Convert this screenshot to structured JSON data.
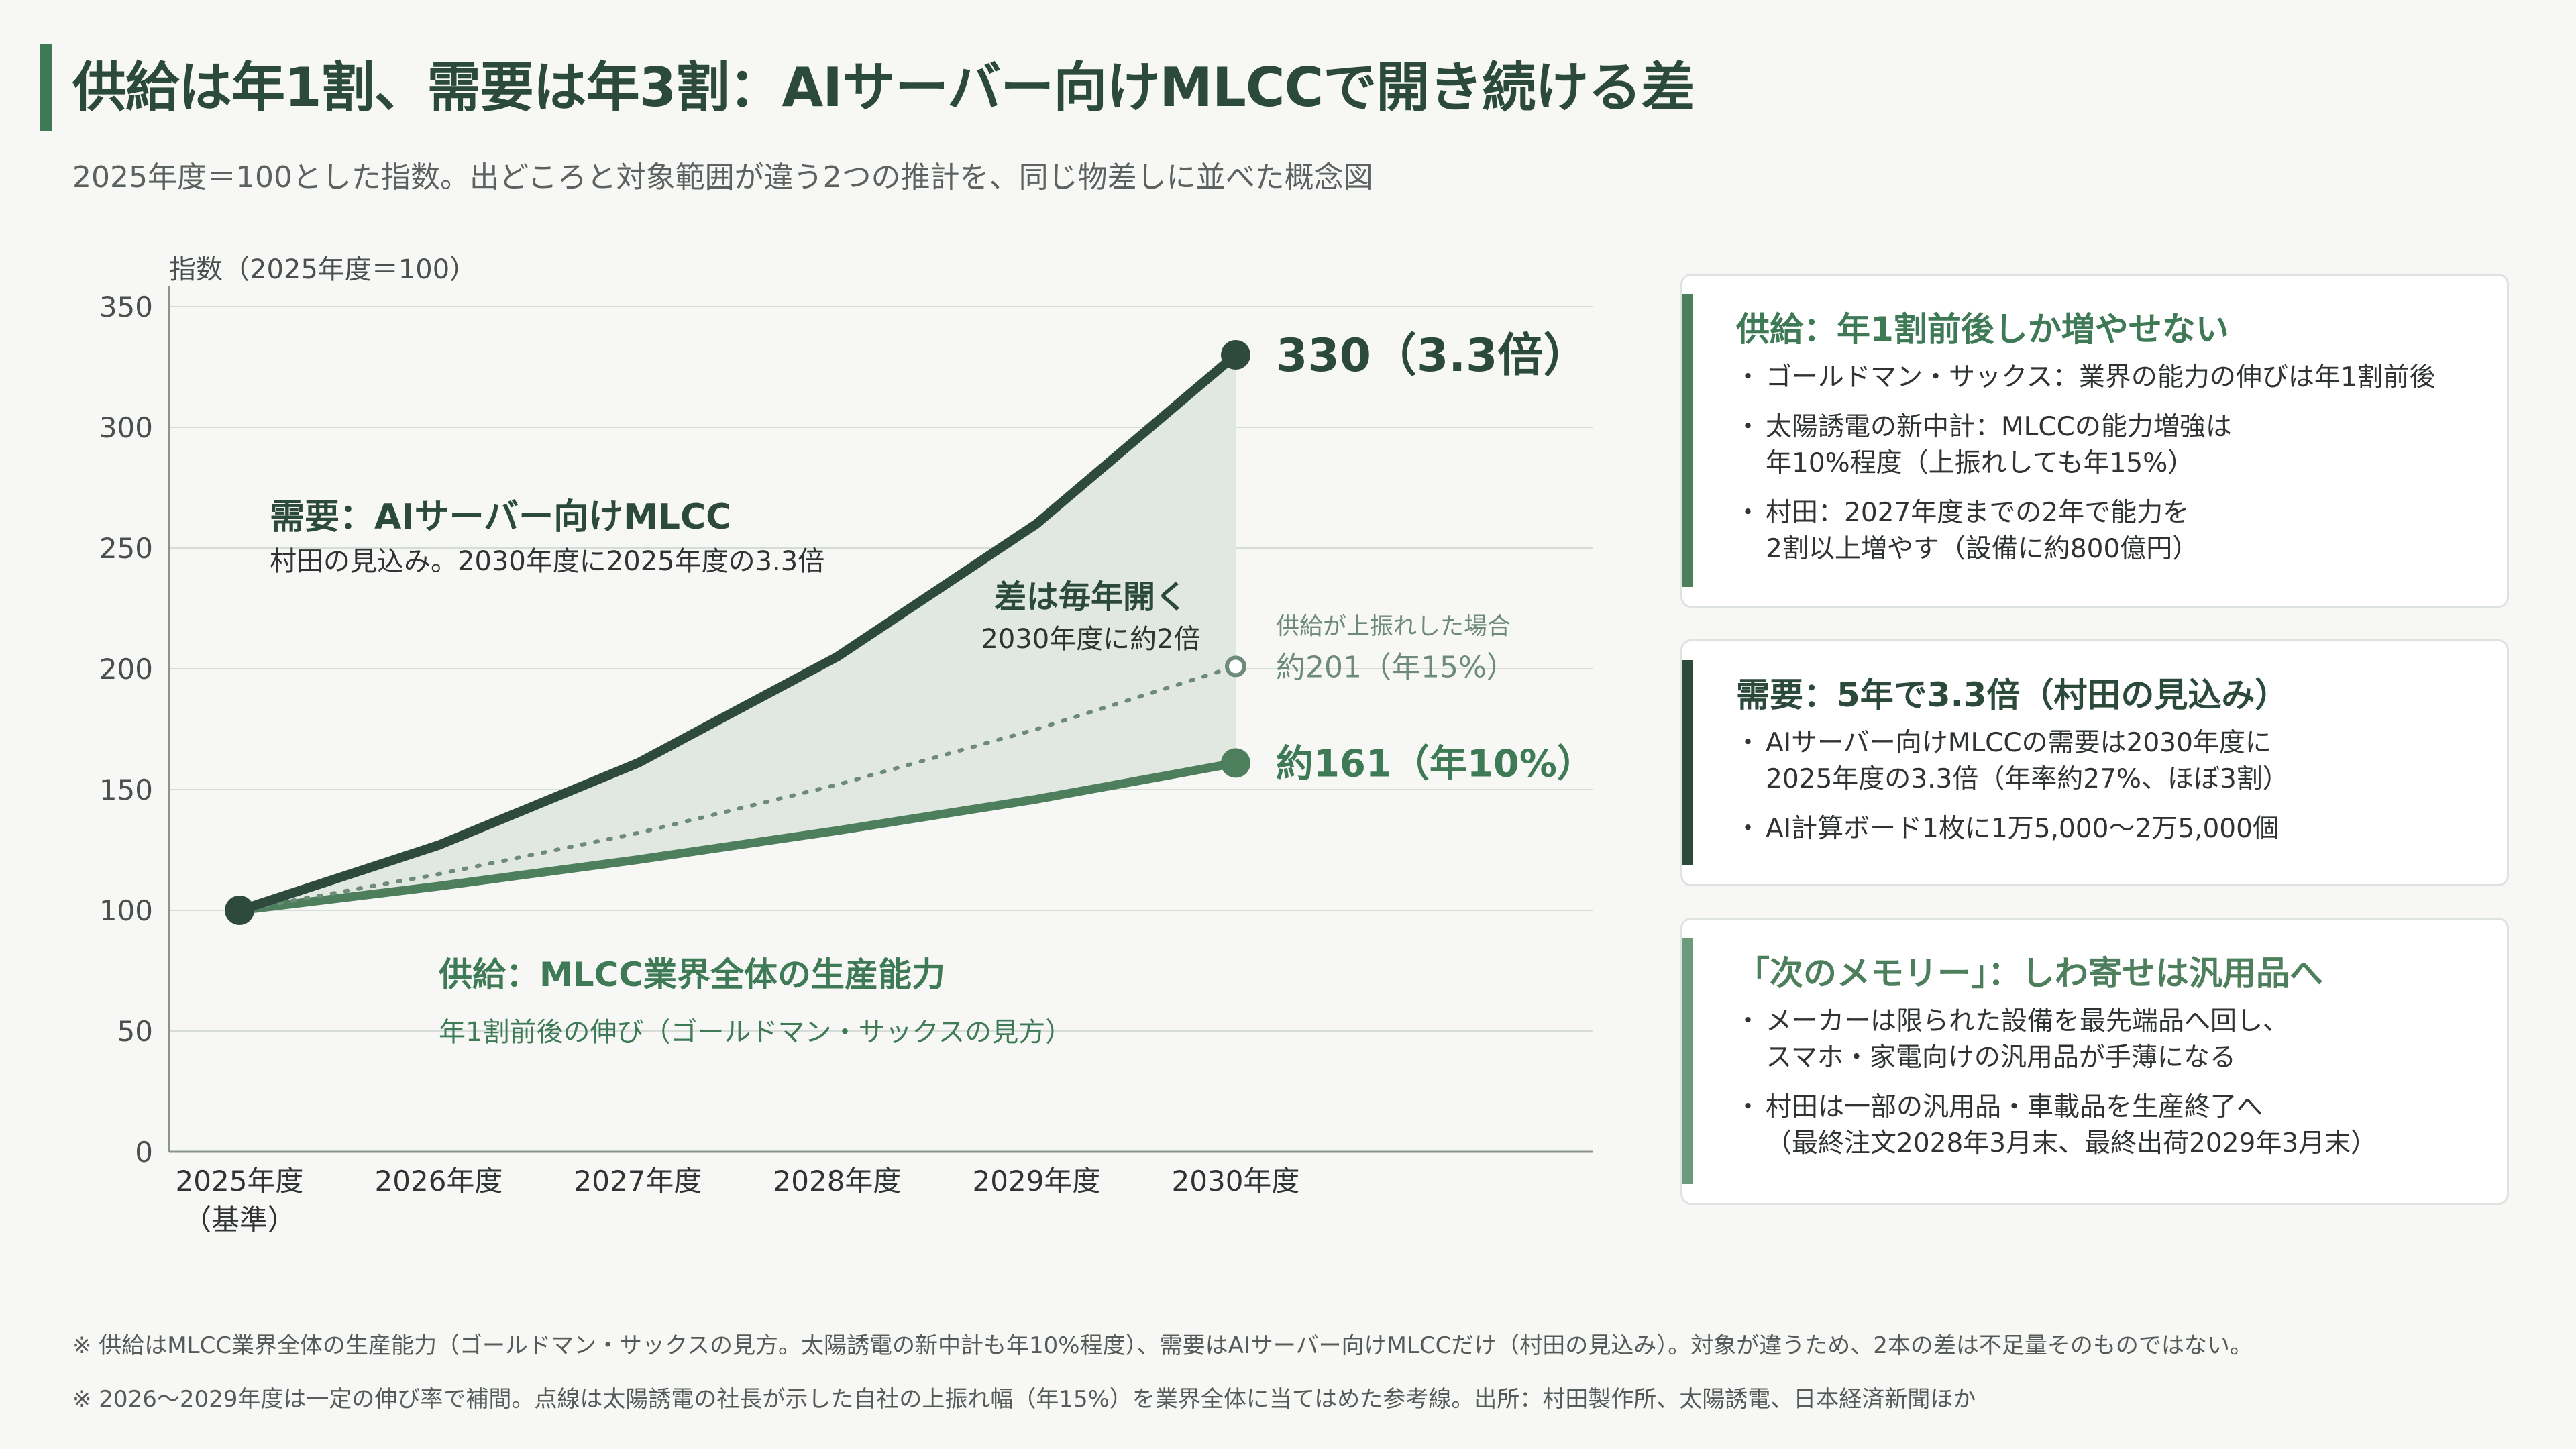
{
  "title": "供給は年1割、需要は年3割：AIサーバー向けMLCCで開き続ける差",
  "subtitle": "2025年度＝100とした指数。出どころと対象範囲が違う2つの推計を、同じ物差しに並べた概念図",
  "chart_data": {
    "type": "line",
    "ylabel": "指数（2025年度＝100）",
    "ylim": [
      0,
      350
    ],
    "yticks": [
      0,
      50,
      100,
      150,
      200,
      250,
      300,
      350
    ],
    "categories": [
      "2025年度",
      "2026年度",
      "2027年度",
      "2028年度",
      "2029年度",
      "2030年度"
    ],
    "category_sublabels": [
      "（基準）",
      "",
      "",
      "",
      "",
      ""
    ],
    "grid": true,
    "series": [
      {
        "key": "demand",
        "color": "#2d4a3c",
        "style": "solid",
        "values": [
          100,
          127,
          161,
          205,
          260,
          330
        ]
      },
      {
        "key": "supply_upside",
        "color": "#6e8a78",
        "style": "dotted",
        "values": [
          100,
          115,
          132,
          152,
          175,
          201
        ]
      },
      {
        "key": "supply",
        "color": "#4d7f5d",
        "style": "solid",
        "values": [
          100,
          110,
          121,
          133,
          146,
          161
        ]
      }
    ],
    "gap_fill_color": "#dfe7e0",
    "end_labels": {
      "demand": "330（3.3倍）",
      "supply_upside_caption": "供給が上振れした場合",
      "supply_upside": "約201（年15%）",
      "supply": "約161（年10%）"
    },
    "annotations": {
      "demand_title": "需要：AIサーバー向けMLCC",
      "demand_desc": "村田の見込み。2030年度に2025年度の3.3倍",
      "gap_title": "差は毎年開く",
      "gap_desc": "2030年度に約2倍",
      "supply_title": "供給：MLCC業界全体の生産能力",
      "supply_desc": "年1割前後の伸び（ゴールドマン・サックスの見方）"
    }
  },
  "cards": [
    {
      "title": "供給：年1割前後しか増やせない",
      "accent": "#4d7f5d",
      "title_color": "#3f7a56",
      "bullets": [
        [
          "ゴールドマン・サックス：業界の能力の伸びは年1割前後"
        ],
        [
          "太陽誘電の新中計：MLCCの能力増強は",
          "年10%程度（上振れしても年15%）"
        ],
        [
          "村田：2027年度までの2年で能力を",
          "2割以上増やす（設備に約800億円）"
        ]
      ]
    },
    {
      "title": "需要：5年で3.3倍（村田の見込み）",
      "accent": "#2d4a3c",
      "title_color": "#2c4a3b",
      "bullets": [
        [
          "AIサーバー向けMLCCの需要は2030年度に",
          "2025年度の3.3倍（年率約27%、ほぼ3割）"
        ],
        [
          "AI計算ボード1枚に1万5,000〜2万5,000個"
        ]
      ]
    },
    {
      "title": "「次のメモリー」：しわ寄せは汎用品へ",
      "accent": "#6e9a7c",
      "title_color": "#4d7f5d",
      "bullets": [
        [
          "メーカーは限られた設備を最先端品へ回し、",
          "スマホ・家電向けの汎用品が手薄になる"
        ],
        [
          "村田は一部の汎用品・車載品を生産終了へ",
          "（最終注文2028年3月末、最終出荷2029年3月末）"
        ]
      ]
    }
  ],
  "notes": [
    "※ 供給はMLCC業界全体の生産能力（ゴールドマン・サックスの見方。太陽誘電の新中計も年10%程度）、需要はAIサーバー向けMLCCだけ（村田の見込み）。対象が違うため、2本の差は不足量そのものではない。",
    "※ 2026〜2029年度は一定の伸び率で補間。点線は太陽誘電の社長が示した自社の上振れ幅（年15%）を業界全体に当てはめた参考線。出所：村田製作所、太陽誘電、日本経済新聞ほか"
  ]
}
